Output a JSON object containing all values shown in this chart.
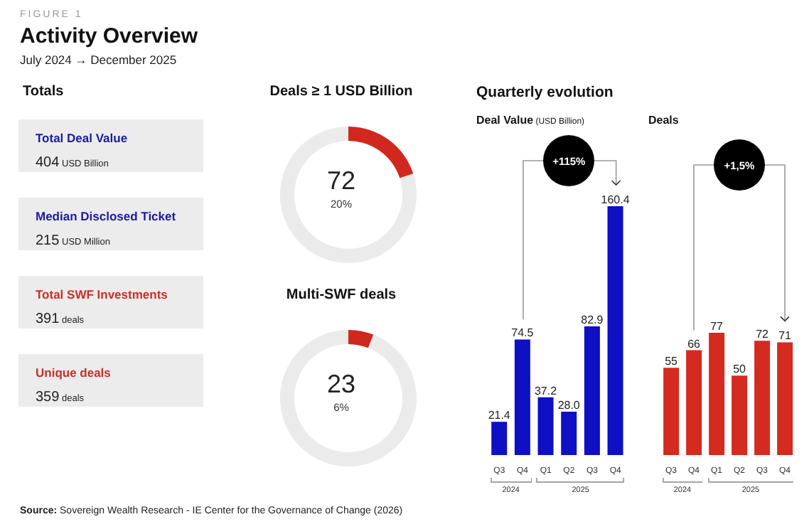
{
  "chart_data": [
    {
      "type": "other",
      "title": "Activity Overview",
      "subtitle": "July 2024 → December 2025",
      "annotations": [
        "FIGURE 1",
        "Totals",
        "Total Deal Value",
        "404 USD Billion",
        "Median Disclosed Ticket",
        "215 USD Million",
        "Total SWF Investments",
        "391 deals",
        "Unique deals",
        "359 deals",
        "Source: Sovereign Wealth Research - IE Center for the Governance of Change (2026)"
      ],
      "colors": [
        "#1c1ca0",
        "#1c1ca0",
        "#c8302a",
        "#c8302a"
      ]
    },
    {
      "type": "donut",
      "title": "Deals ≥ 1 USD Billion",
      "categories": [
        null,
        null
      ],
      "values": [
        20,
        80
      ],
      "colors": [
        "#d0281e",
        "#ebebeb"
      ],
      "annotations": [
        "72",
        "20%"
      ]
    },
    {
      "type": "donut",
      "title": "Multi-SWF deals",
      "categories": [
        null,
        null
      ],
      "values": [
        6,
        94
      ],
      "colors": [
        "#d0281e",
        "#ebebeb"
      ],
      "annotations": [
        "23",
        "6%"
      ]
    },
    {
      "type": "bar",
      "title": "Quarterly evolution",
      "subtitle": "Deal Value (USD Billion)",
      "categories": [
        "Q3",
        "Q4",
        "Q1",
        "Q2",
        "Q3",
        "Q4"
      ],
      "values": [
        21.4,
        74.5,
        37.2,
        28.0,
        82.9,
        160.4
      ],
      "color": "#0f0fc4",
      "value_labels": [
        "21.4",
        "74.5",
        "37.2",
        "28.0",
        "82.9",
        "160.4"
      ],
      "annotations": [
        "+115%",
        "2024",
        "2025"
      ]
    },
    {
      "type": "bar",
      "subtitle": "Deals",
      "categories": [
        "Q3",
        "Q4",
        "Q1",
        "Q2",
        "Q3",
        "Q4"
      ],
      "values": [
        55,
        66,
        77,
        50,
        72,
        71
      ],
      "color": "#d52a20",
      "data_labels": true,
      "annotations": [
        "+1,5%",
        "2024",
        "2025"
      ]
    }
  ]
}
